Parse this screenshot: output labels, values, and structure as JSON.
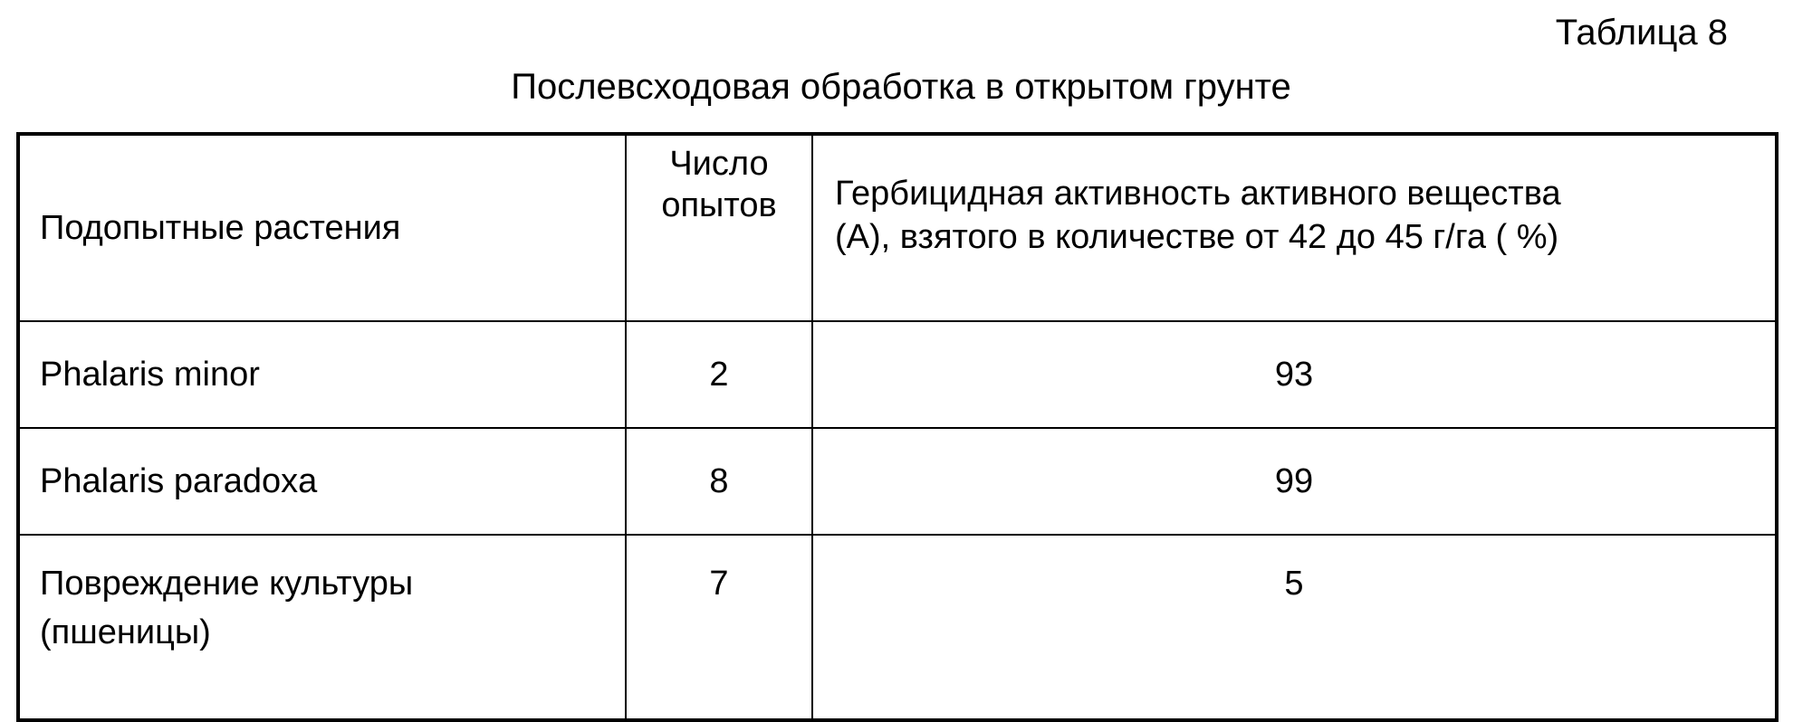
{
  "table_label": "Таблица 8",
  "title": "Послевсходовая обработка в открытом грунте",
  "headers": {
    "plants": "Подопытные растения",
    "count_line1": "Число",
    "count_line2": "опытов",
    "activity_line1": "Гербицидная активность активного вещества",
    "activity_line2": "(А), взятого в количестве от 42 до 45 г/га ( %)"
  },
  "rows": [
    {
      "plant": "Phalaris minor",
      "count": "2",
      "activity": "93"
    },
    {
      "plant": "Phalaris paradoxa",
      "count": "8",
      "activity": "99"
    },
    {
      "plant_line1": "Повреждение культуры",
      "plant_line2": "(пшеницы)",
      "count": "7",
      "activity": "5"
    }
  ]
}
